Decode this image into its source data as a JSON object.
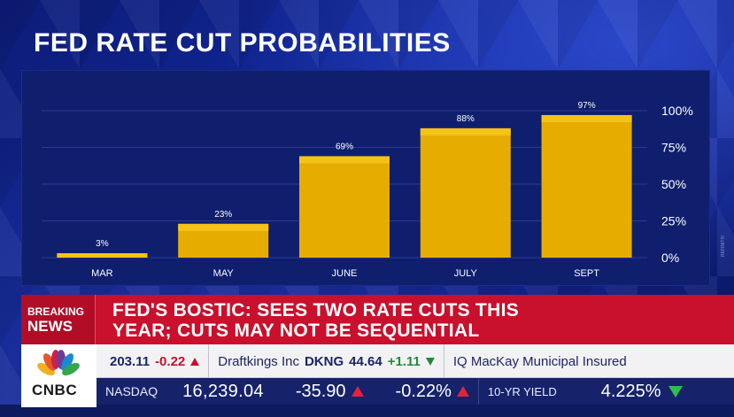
{
  "title": "FED RATE CUT PROBABILITIES",
  "chart_data": {
    "type": "bar",
    "categories": [
      "MAR",
      "MAY",
      "JUNE",
      "JULY",
      "SEPT"
    ],
    "values": [
      3,
      23,
      69,
      88,
      97
    ],
    "value_labels": [
      "3%",
      "23%",
      "69%",
      "88%",
      "97%"
    ],
    "y_tick_labels": [
      "100%",
      "75%",
      "50%",
      "25%",
      "0%"
    ],
    "y_ticks": [
      100,
      75,
      50,
      25,
      0
    ],
    "ylim": [
      0,
      100
    ],
    "grid": true,
    "title": "FED RATE CUT PROBABILITIES",
    "xlabel": "",
    "ylabel": "",
    "bar_color": "#e6ac00",
    "bar_top_color": "#f5c21a"
  },
  "source_mark": "REFINITIV",
  "breaking": {
    "tag_line1": "BREAKING",
    "tag_line2": "NEWS",
    "headline_line1": "FED'S BOSTIC: SEES TWO RATE CUTS THIS",
    "headline_line2": "YEAR; CUTS MAY NOT BE SEQUENTIAL"
  },
  "ticker": {
    "items": [
      {
        "text": "203.11",
        "change": "-0.22",
        "dir": "down"
      },
      {
        "text": "Draftkings Inc",
        "symbol": "DKNG",
        "price": "44.64",
        "change": "+1.11",
        "dir": "up"
      },
      {
        "text": "IQ MacKay Municipal Insured"
      }
    ]
  },
  "logo": {
    "text": "CNBC"
  },
  "markets": {
    "index_label": "NASDAQ",
    "index_value": "16,239.04",
    "index_change": "-35.90",
    "index_pct": "-0.22%",
    "yield_label": "10-YR YIELD",
    "yield_value": "4.225%"
  },
  "colors": {
    "breaking_red": "#c9102c",
    "bar_gold": "#e6ac00",
    "panel_navy": "#0f1f6e",
    "negative_red": "#c8102e",
    "positive_green": "#1f8b3a"
  }
}
